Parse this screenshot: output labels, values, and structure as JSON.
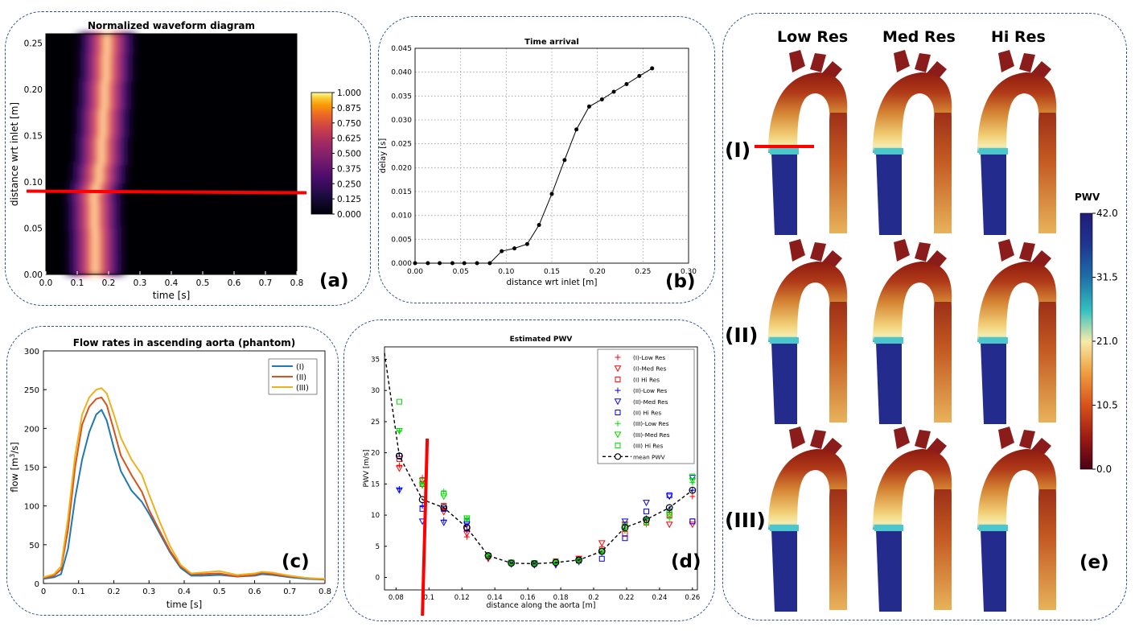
{
  "colors": {
    "panel_border": "#2f4f8a",
    "marker_line": "#ff0000"
  },
  "charts": [
    {
      "panel": "(a)",
      "chart_data": {
        "type": "heatmap",
        "title": "Normalized waveform diagram",
        "xlabel": "time [s]",
        "ylabel": "distance wrt inlet [m]",
        "xlim": [
          0,
          0.8
        ],
        "ylim": [
          0,
          0.26
        ],
        "xticks": [
          "0.0",
          "0.1",
          "0.2",
          "0.3",
          "0.4",
          "0.5",
          "0.6",
          "0.7",
          "0.8"
        ],
        "yticks": [
          "0.00",
          "0.05",
          "0.10",
          "0.15",
          "0.20",
          "0.25"
        ],
        "colorbar_ticks": [
          "0.000",
          "0.125",
          "0.250",
          "0.375",
          "0.500",
          "0.625",
          "0.750",
          "0.875",
          "1.000"
        ],
        "colorbar_range": [
          0,
          1
        ],
        "marker_y": 0.09,
        "ridge": {
          "distance": [
            0.0,
            0.02,
            0.05,
            0.08,
            0.09,
            0.1,
            0.12,
            0.15,
            0.18,
            0.21,
            0.24,
            0.26
          ],
          "peak_time": [
            0.16,
            0.155,
            0.16,
            0.15,
            0.155,
            0.165,
            0.175,
            0.18,
            0.185,
            0.19,
            0.195,
            0.195
          ]
        }
      }
    },
    {
      "panel": "(b)",
      "chart_data": {
        "type": "line",
        "title": "Time arrival",
        "xlabel": "distance wrt inlet [m]",
        "ylabel": "delay [s]",
        "xlim": [
          0,
          0.3
        ],
        "ylim": [
          0,
          0.045
        ],
        "xticks": [
          "0.00",
          "0.05",
          "0.10",
          "0.15",
          "0.20",
          "0.25",
          "0.30"
        ],
        "yticks": [
          "0.000",
          "0.005",
          "0.010",
          "0.015",
          "0.020",
          "0.025",
          "0.030",
          "0.035",
          "0.040",
          "0.045"
        ],
        "grid": true,
        "x": [
          0.0,
          0.014,
          0.027,
          0.041,
          0.054,
          0.068,
          0.082,
          0.095,
          0.109,
          0.123,
          0.136,
          0.15,
          0.164,
          0.177,
          0.191,
          0.205,
          0.218,
          0.232,
          0.246,
          0.26
        ],
        "y": [
          0.0,
          0.0,
          0.0,
          0.0,
          0.0,
          0.0,
          0.0,
          0.0025,
          0.0031,
          0.004,
          0.008,
          0.0145,
          0.0216,
          0.028,
          0.0328,
          0.0343,
          0.0359,
          0.0375,
          0.0392,
          0.0408
        ]
      }
    },
    {
      "panel": "(c)",
      "chart_data": {
        "type": "line",
        "title": "Flow rates in ascending aorta (phantom)",
        "xlabel": "time [s]",
        "ylabel_main": "flow [m",
        "ylabel_sup": "3",
        "ylabel_end": "/s]",
        "xlim": [
          0,
          0.8
        ],
        "ylim": [
          0,
          300
        ],
        "xticks": [
          "0",
          "0.1",
          "0.2",
          "0.3",
          "0.4",
          "0.5",
          "0.6",
          "0.7",
          "0.8"
        ],
        "yticks": [
          "0",
          "50",
          "100",
          "150",
          "200",
          "250",
          "300"
        ],
        "legend_position": "top-right",
        "x": [
          0,
          0.03,
          0.05,
          0.07,
          0.09,
          0.11,
          0.13,
          0.15,
          0.165,
          0.18,
          0.2,
          0.22,
          0.25,
          0.28,
          0.3,
          0.33,
          0.36,
          0.39,
          0.42,
          0.45,
          0.5,
          0.55,
          0.6,
          0.62,
          0.65,
          0.7,
          0.75,
          0.8
        ],
        "series": [
          {
            "name": "(I)",
            "color": "#1f77b4",
            "values": [
              6,
              8,
              12,
              45,
              110,
              160,
              195,
              218,
              224,
              210,
              175,
              145,
              120,
              105,
              90,
              65,
              40,
              20,
              10,
              10,
              11,
              9,
              10,
              12,
              11,
              8,
              6,
              5
            ]
          },
          {
            "name": "(II)",
            "color": "#d95319",
            "values": [
              7,
              10,
              18,
              70,
              150,
              205,
              228,
              238,
              240,
              230,
              198,
              165,
              140,
              118,
              95,
              68,
              42,
              22,
              12,
              12,
              13,
              9,
              11,
              14,
              12,
              9,
              7,
              5
            ]
          },
          {
            "name": "(III)",
            "color": "#edb120",
            "values": [
              8,
              12,
              22,
              85,
              165,
              218,
              240,
              250,
              252,
              245,
              218,
              188,
              160,
              140,
              115,
              80,
              48,
              24,
              13,
              14,
              16,
              11,
              13,
              15,
              14,
              10,
              7,
              6
            ]
          }
        ]
      }
    },
    {
      "panel": "(d)",
      "chart_data": {
        "type": "scatter",
        "title": "Estimated PWV",
        "xlabel": "distance along the aorta [m]",
        "ylabel": "PWV [m/s]",
        "xlim": [
          0.073,
          0.263
        ],
        "ylim": [
          -2,
          37
        ],
        "xticks": [
          "0.08",
          "0.1",
          "0.12",
          "0.14",
          "0.16",
          "0.18",
          "0.2",
          "0.22",
          "0.24",
          "0.26"
        ],
        "ytick_values": [
          0,
          5,
          10,
          15,
          20,
          25,
          30,
          35
        ],
        "yticks": [
          "0",
          "5",
          "10",
          "15",
          "20",
          "25",
          "30",
          "35"
        ],
        "marker_x": 0.097,
        "legend_position": "top-right",
        "x": [
          0.082,
          0.096,
          0.109,
          0.123,
          0.136,
          0.15,
          0.164,
          0.177,
          0.191,
          0.205,
          0.219,
          0.232,
          0.246,
          0.26
        ],
        "mean_pwv": {
          "name": "mean PWV",
          "values": [
            19.5,
            12.5,
            11.2,
            8.0,
            3.5,
            2.3,
            2.2,
            2.4,
            2.8,
            4.2,
            8.0,
            9.3,
            11.2,
            14.0
          ],
          "start": [
            0.073,
            36.0
          ]
        },
        "series": [
          {
            "name": "(I)-Low Res",
            "color": "#ff0000",
            "marker": "plus",
            "values": [
              18.0,
              16.0,
              11.0,
              6.5,
              3.2,
              2.1,
              2.0,
              2.3,
              2.6,
              4.0,
              7.5,
              8.8,
              10.5,
              13.0
            ]
          },
          {
            "name": "(I)-Med Res",
            "color": "#ff0000",
            "marker": "tri",
            "values": [
              17.5,
              15.5,
              10.5,
              7.0,
              3.0,
              2.3,
              2.1,
              2.1,
              3.0,
              5.5,
              8.5,
              9.0,
              8.5,
              8.5
            ]
          },
          {
            "name": "(I) Hi Res",
            "color": "#ff0000",
            "marker": "square",
            "values": [
              19.0,
              15.0,
              11.5,
              8.0,
              3.4,
              2.4,
              2.3,
              2.6,
              3.0,
              4.5,
              7.0,
              8.8,
              10.0,
              9.0
            ]
          },
          {
            "name": "(II)-Low Res",
            "color": "#0000ff",
            "marker": "plus",
            "values": [
              14.2,
              11.5,
              9.2,
              7.5,
              3.3,
              2.2,
              2.1,
              2.3,
              2.9,
              3.8,
              8.5,
              9.5,
              11.0,
              14.0
            ]
          },
          {
            "name": "(II)-Med Res",
            "color": "#0000ff",
            "marker": "tri",
            "values": [
              14.0,
              9.0,
              8.8,
              8.5,
              3.2,
              2.1,
              2.0,
              2.0,
              2.5,
              4.0,
              9.0,
              12.0,
              13.0,
              16.0
            ]
          },
          {
            "name": "(II) Hi Res",
            "color": "#0000ff",
            "marker": "square",
            "values": [
              19.5,
              11.0,
              11.0,
              9.0,
              3.5,
              2.4,
              2.3,
              2.5,
              2.7,
              3.0,
              6.3,
              10.6,
              13.2,
              9.0
            ]
          },
          {
            "name": "(III)-Low Res",
            "color": "#00dd00",
            "marker": "plus",
            "values": [
              23.5,
              15.0,
              13.8,
              9.5,
              3.6,
              2.3,
              2.3,
              2.5,
              2.8,
              4.0,
              7.5,
              8.5,
              9.5,
              15.2
            ]
          },
          {
            "name": "(III)-Med Res",
            "color": "#00dd00",
            "marker": "tri",
            "values": [
              23.5,
              14.8,
              13.0,
              9.5,
              3.3,
              2.2,
              2.2,
              2.3,
              2.6,
              4.0,
              8.0,
              9.0,
              10.0,
              15.5
            ]
          },
          {
            "name": "(III) Hi Res",
            "color": "#00dd00",
            "marker": "square",
            "values": [
              28.2,
              15.5,
              13.5,
              9.5,
              3.5,
              2.4,
              2.3,
              2.5,
              2.8,
              4.2,
              8.3,
              9.2,
              10.5,
              16.2
            ]
          }
        ]
      }
    }
  ],
  "panel_e": {
    "label": "(e)",
    "column_headers": [
      "Low Res",
      "Med Res",
      "Hi Res"
    ],
    "row_labels": [
      "(I)",
      "(II)",
      "(III)"
    ],
    "colorbar_title": "PWV",
    "colorbar_ticks": [
      "0.0",
      "10.5",
      "21.0",
      "31.5",
      "42.0"
    ],
    "colorbar_range": [
      0,
      42
    ],
    "marker_row": "(I)"
  }
}
